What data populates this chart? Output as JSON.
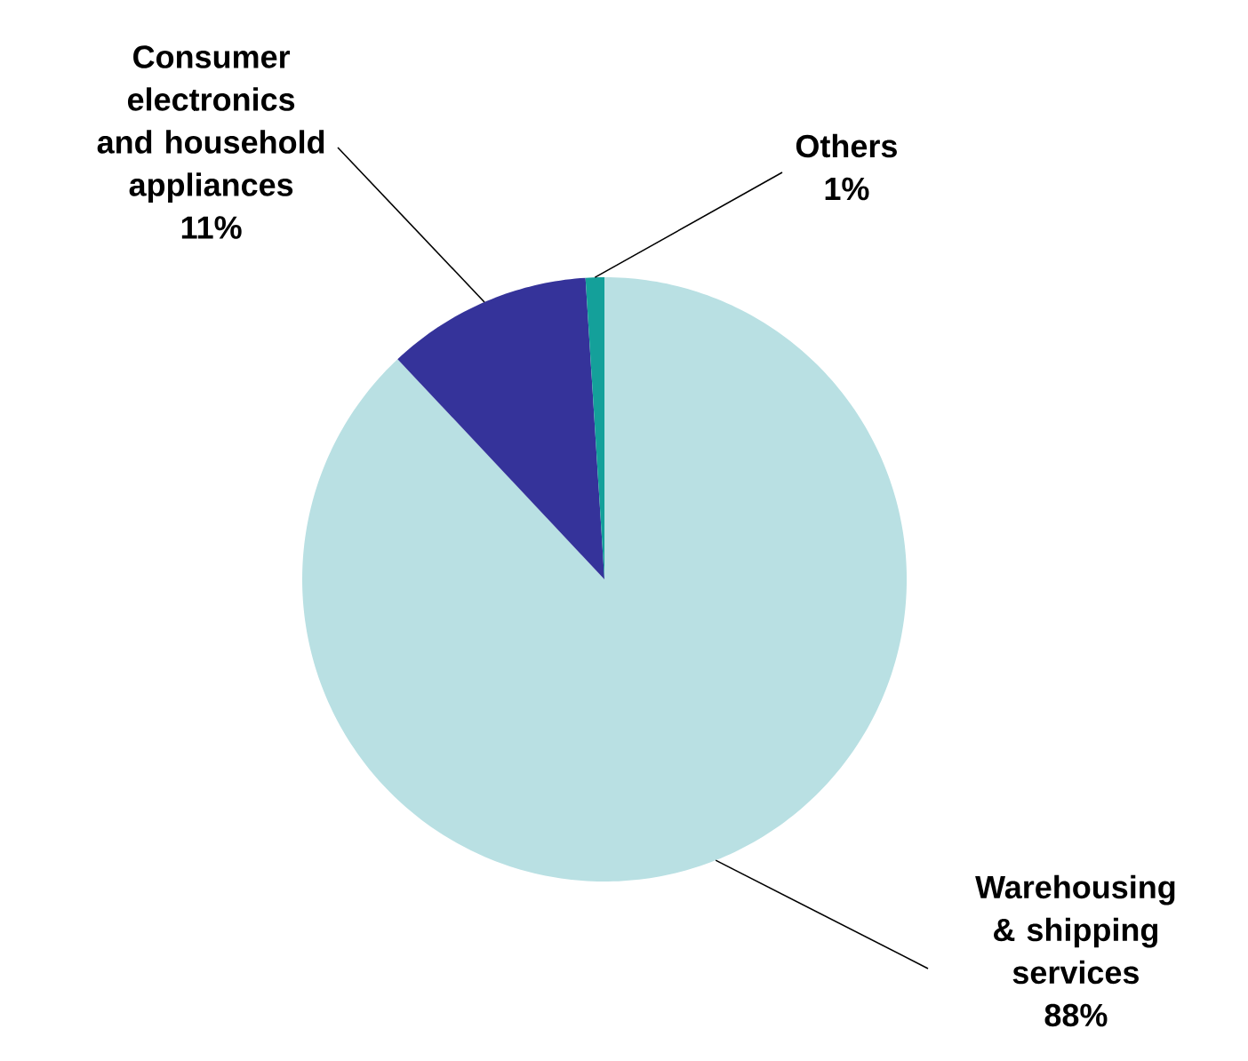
{
  "chart_data": {
    "type": "pie",
    "categories": [
      "Warehousing & shipping services",
      "Consumer electronics and household appliances",
      "Others"
    ],
    "values": [
      88,
      11,
      1
    ],
    "value_labels": [
      "88%",
      "11%",
      "1%"
    ],
    "colors": [
      "#b9e0e3",
      "#35339a",
      "#14a09a"
    ]
  }
}
